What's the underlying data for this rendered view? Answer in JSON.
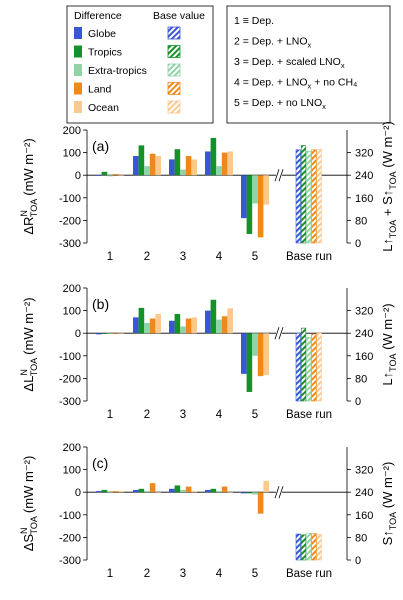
{
  "legend_left": {
    "header_diff": "Difference",
    "header_base": "Base value",
    "items": [
      {
        "label": "Globe",
        "color": "#3a56d4"
      },
      {
        "label": "Tropics",
        "color": "#15912a"
      },
      {
        "label": "Extra-tropics",
        "color": "#8fd3a7"
      },
      {
        "label": "Land",
        "color": "#f0891c"
      },
      {
        "label": "Ocean",
        "color": "#fbc98f"
      }
    ]
  },
  "legend_right": {
    "items": [
      {
        "prefix": "1 ≡ Dep.",
        "sub": "",
        "suffix": ""
      },
      {
        "prefix": "2 = Dep. + LNO",
        "sub": "x",
        "suffix": ""
      },
      {
        "prefix": "3 = Dep. + scaled LNO",
        "sub": "x",
        "suffix": ""
      },
      {
        "prefix": "4 = Dep. + LNO",
        "sub": "x",
        "suffix": " + no CH₄"
      },
      {
        "prefix": "5 = Dep. + no LNO",
        "sub": "x",
        "suffix": ""
      }
    ]
  },
  "chart_data": [
    {
      "type": "bar",
      "panel_label": "(a)",
      "categories": [
        "1",
        "2",
        "3",
        "4",
        "5"
      ],
      "base_category": "Base run",
      "ylabel_left": {
        "main": "ΔR",
        "sup": "N",
        "sub": "TOA",
        "unit": "(mW m⁻²)"
      },
      "ylabel_right": {
        "main": "L↑",
        "sub1": "TOA",
        "mid": " + S↑",
        "sub2": "TOA",
        "unit": " (W m⁻²)"
      },
      "ylim": [
        -300,
        200
      ],
      "yticks": [
        -300,
        -200,
        -100,
        0,
        100,
        200
      ],
      "ylim_right": [
        0,
        400
      ],
      "yticks_right": [
        0,
        80,
        160,
        240,
        320
      ],
      "series": [
        {
          "name": "Globe",
          "values": [
            0,
            85,
            70,
            105,
            -190
          ]
        },
        {
          "name": "Tropics",
          "values": [
            15,
            132,
            115,
            165,
            -260
          ]
        },
        {
          "name": "Extra-tropics",
          "values": [
            -5,
            40,
            25,
            40,
            -125
          ]
        },
        {
          "name": "Land",
          "values": [
            5,
            95,
            85,
            100,
            -275
          ]
        },
        {
          "name": "Ocean",
          "values": [
            0,
            85,
            70,
            105,
            -130
          ]
        }
      ],
      "base_values": [
        330,
        345,
        325,
        330,
        332
      ]
    },
    {
      "type": "bar",
      "panel_label": "(b)",
      "categories": [
        "1",
        "2",
        "3",
        "4",
        "5"
      ],
      "base_category": "Base run",
      "ylabel_left": {
        "main": "ΔL",
        "sup": "N",
        "sub": "TOA",
        "unit": "(mW m⁻²)"
      },
      "ylabel_right": {
        "main": "L↑",
        "sub1": "TOA",
        "mid": "",
        "sub2": "",
        "unit": " (W m⁻²)"
      },
      "ylim": [
        -300,
        200
      ],
      "yticks": [
        -300,
        -200,
        -100,
        0,
        100,
        200
      ],
      "ylim_right": [
        0,
        400
      ],
      "yticks_right": [
        0,
        80,
        160,
        240,
        320
      ],
      "series": [
        {
          "name": "Globe",
          "values": [
            -5,
            70,
            55,
            100,
            -180
          ]
        },
        {
          "name": "Tropics",
          "values": [
            -2,
            112,
            85,
            148,
            -260
          ]
        },
        {
          "name": "Extra-tropics",
          "values": [
            0,
            45,
            30,
            60,
            -100
          ]
        },
        {
          "name": "Land",
          "values": [
            0,
            65,
            65,
            75,
            -190
          ]
        },
        {
          "name": "Ocean",
          "values": [
            0,
            85,
            70,
            110,
            -185
          ]
        }
      ],
      "base_values": [
        240,
        258,
        225,
        237,
        240
      ]
    },
    {
      "type": "bar",
      "panel_label": "(c)",
      "categories": [
        "1",
        "2",
        "3",
        "4",
        "5"
      ],
      "base_category": "Base run",
      "ylabel_left": {
        "main": "ΔS",
        "sup": "N",
        "sub": "TOA",
        "unit": "(mW m⁻²)"
      },
      "ylabel_right": {
        "main": "S↑",
        "sub1": "TOA",
        "mid": "",
        "sub2": "",
        "unit": " (W m⁻²)"
      },
      "ylim": [
        -300,
        200
      ],
      "yticks": [
        -300,
        -200,
        -100,
        0,
        100,
        200
      ],
      "ylim_right": [
        0,
        400
      ],
      "yticks_right": [
        0,
        80,
        160,
        240,
        320
      ],
      "series": [
        {
          "name": "Globe",
          "values": [
            5,
            10,
            15,
            10,
            -5
          ]
        },
        {
          "name": "Tropics",
          "values": [
            10,
            15,
            30,
            15,
            -5
          ]
        },
        {
          "name": "Extra-tropics",
          "values": [
            0,
            5,
            10,
            5,
            -10
          ]
        },
        {
          "name": "Land",
          "values": [
            5,
            40,
            25,
            25,
            -95
          ]
        },
        {
          "name": "Ocean",
          "values": [
            5,
            0,
            5,
            0,
            50
          ]
        }
      ],
      "base_values": [
        92,
        89,
        95,
        94,
        90
      ]
    }
  ]
}
